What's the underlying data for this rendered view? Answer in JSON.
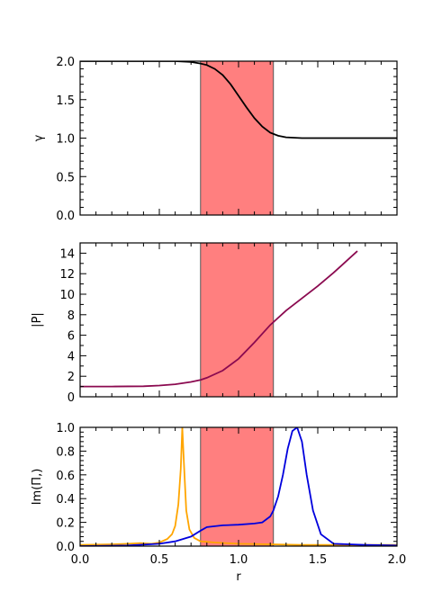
{
  "chart_data": [
    {
      "type": "line",
      "ylabel": "γ",
      "xlim": [
        0.0,
        2.0
      ],
      "ylim": [
        0.0,
        2.0
      ],
      "yticks": [
        "0.0",
        "0.5",
        "1.0",
        "1.5",
        "2.0"
      ],
      "shaded_region": [
        0.76,
        1.22
      ],
      "series": [
        {
          "color": "#000000",
          "x": [
            0.0,
            0.2,
            0.4,
            0.6,
            0.7,
            0.76,
            0.8,
            0.85,
            0.9,
            0.95,
            1.0,
            1.05,
            1.1,
            1.15,
            1.2,
            1.25,
            1.3,
            1.4,
            1.6,
            1.8,
            2.0
          ],
          "y": [
            2.0,
            2.0,
            2.0,
            2.0,
            1.99,
            1.97,
            1.95,
            1.9,
            1.82,
            1.7,
            1.55,
            1.4,
            1.26,
            1.15,
            1.07,
            1.03,
            1.01,
            1.0,
            1.0,
            1.0,
            1.0
          ]
        }
      ]
    },
    {
      "type": "line",
      "ylabel": "|P|",
      "xlim": [
        0.0,
        2.0
      ],
      "ylim": [
        0,
        15
      ],
      "yticks": [
        "0",
        "2",
        "4",
        "6",
        "8",
        "10",
        "12",
        "14"
      ],
      "shaded_region": [
        0.76,
        1.22
      ],
      "series": [
        {
          "color": "#8b0a50",
          "x": [
            0.0,
            0.2,
            0.4,
            0.5,
            0.6,
            0.7,
            0.76,
            0.8,
            0.9,
            1.0,
            1.1,
            1.2,
            1.3,
            1.4,
            1.5,
            1.6,
            1.7,
            1.75
          ],
          "y": [
            1.0,
            1.0,
            1.03,
            1.1,
            1.22,
            1.45,
            1.65,
            1.85,
            2.55,
            3.7,
            5.3,
            7.0,
            8.4,
            9.6,
            10.8,
            12.1,
            13.5,
            14.2
          ]
        }
      ]
    },
    {
      "type": "line",
      "xlabel": "r",
      "ylabel": "Im(Π,)",
      "xlim": [
        0.0,
        2.0
      ],
      "ylim": [
        0.0,
        1.0
      ],
      "xticks": [
        "0.0",
        "0.5",
        "1.0",
        "1.5",
        "2.0"
      ],
      "yticks": [
        "0.0",
        "0.2",
        "0.4",
        "0.6",
        "0.8",
        "1.0"
      ],
      "shaded_region": [
        0.76,
        1.22
      ],
      "series": [
        {
          "color": "#ffa500",
          "x": [
            0.0,
            0.2,
            0.3,
            0.38,
            0.45,
            0.5,
            0.55,
            0.58,
            0.6,
            0.62,
            0.635,
            0.645,
            0.655,
            0.67,
            0.69,
            0.72,
            0.76,
            0.85,
            1.0,
            1.2,
            1.4,
            1.6,
            1.8,
            2.0
          ],
          "y": [
            0.01,
            0.015,
            0.02,
            0.025,
            0.02,
            0.03,
            0.06,
            0.1,
            0.17,
            0.35,
            0.65,
            1.0,
            0.7,
            0.3,
            0.14,
            0.07,
            0.04,
            0.03,
            0.02,
            0.015,
            0.01,
            0.01,
            0.01,
            0.01
          ]
        },
        {
          "color": "#0000dd",
          "x": [
            0.0,
            0.3,
            0.5,
            0.6,
            0.7,
            0.76,
            0.8,
            0.9,
            1.0,
            1.1,
            1.15,
            1.2,
            1.22,
            1.25,
            1.28,
            1.31,
            1.34,
            1.37,
            1.4,
            1.43,
            1.47,
            1.52,
            1.6,
            1.8,
            2.0
          ],
          "y": [
            0.0,
            0.005,
            0.02,
            0.04,
            0.08,
            0.13,
            0.16,
            0.175,
            0.18,
            0.19,
            0.2,
            0.25,
            0.3,
            0.42,
            0.6,
            0.82,
            0.97,
            1.0,
            0.88,
            0.6,
            0.3,
            0.1,
            0.02,
            0.01,
            0.005
          ]
        }
      ]
    }
  ]
}
